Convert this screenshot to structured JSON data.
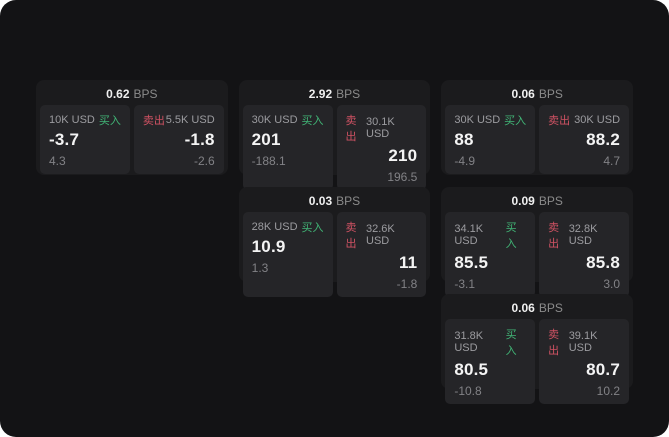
{
  "labels": {
    "bps_unit": "BPS",
    "buy": "买入",
    "sell": "卖出"
  },
  "colors": {
    "window_bg": "#131315",
    "card_bg": "#1b1b1d",
    "panel_bg": "#252528",
    "buy_green": "#41b576",
    "sell_red": "#d05263"
  },
  "cards": [
    {
      "spread": "0.62",
      "buy": {
        "size": "10K USD",
        "price": "-3.7",
        "sub": "4.3"
      },
      "sell": {
        "size": "5.5K USD",
        "price": "-1.8",
        "sub": "-2.6"
      }
    },
    {
      "spread": "2.92",
      "buy": {
        "size": "30K USD",
        "price": "201",
        "sub": "-188.1"
      },
      "sell": {
        "size": "30.1K USD",
        "price": "210",
        "sub": "196.5"
      }
    },
    {
      "spread": "0.06",
      "buy": {
        "size": "30K USD",
        "price": "88",
        "sub": "-4.9"
      },
      "sell": {
        "size": "30K USD",
        "price": "88.2",
        "sub": "4.7"
      }
    },
    {
      "spread": "0.03",
      "buy": {
        "size": "28K USD",
        "price": "10.9",
        "sub": "1.3"
      },
      "sell": {
        "size": "32.6K USD",
        "price": "11",
        "sub": "-1.8"
      }
    },
    {
      "spread": "0.09",
      "buy": {
        "size": "34.1K USD",
        "price": "85.5",
        "sub": "-3.1"
      },
      "sell": {
        "size": "32.8K USD",
        "price": "85.8",
        "sub": "3.0"
      }
    },
    {
      "spread": "0.06",
      "buy": {
        "size": "31.8K USD",
        "price": "80.5",
        "sub": "-10.8"
      },
      "sell": {
        "size": "39.1K USD",
        "price": "80.7",
        "sub": "10.2"
      }
    }
  ]
}
